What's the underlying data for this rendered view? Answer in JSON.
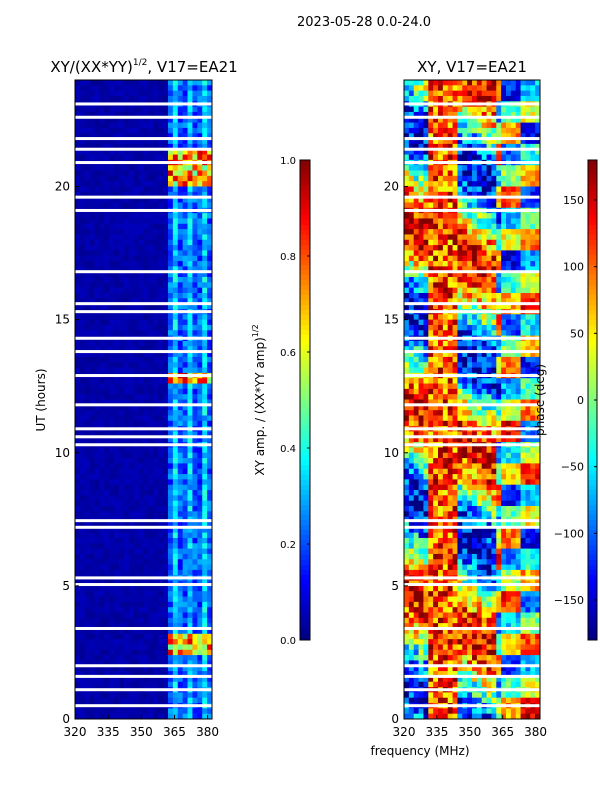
{
  "figure_title": "2023-05-28 0.0-24.0",
  "xlabel_shared": "frequency (MHz)",
  "chart_data": [
    {
      "type": "heatmap",
      "title": "XY/(XX*YY)^1/2, V17=EA21",
      "title_parts": {
        "main": "XY/(XX*YY)",
        "sup": "1/2",
        "rest": ", V17=EA21"
      },
      "xlabel": "",
      "ylabel": "UT (hours)",
      "xlim": [
        320,
        382
      ],
      "ylim": [
        0,
        24
      ],
      "xticks": [
        320,
        335,
        350,
        365,
        380
      ],
      "yticks": [
        0,
        5,
        10,
        15,
        20
      ],
      "colorscale": "jet",
      "colorbar": {
        "label": "XY amp. / (XX*YY amp)",
        "label_sup": "1/2",
        "range": [
          0.0,
          1.0
        ],
        "ticks": [
          "0.0",
          "0.2",
          "0.4",
          "0.6",
          "0.8",
          "1.0"
        ]
      },
      "gaps_ut": [
        0.5,
        1.1,
        1.6,
        2.0,
        3.4,
        5.05,
        5.3,
        7.2,
        7.45,
        10.3,
        10.6,
        10.9,
        11.8,
        12.9,
        13.8,
        14.3,
        15.3,
        15.6,
        16.8,
        19.1,
        19.6,
        20.9,
        21.4,
        21.8,
        22.6,
        23.1
      ],
      "bright_bands_ut": [
        [
          2.4,
          3.2
        ],
        [
          12.6,
          13.0
        ],
        [
          20.0,
          21.3
        ]
      ]
    },
    {
      "type": "heatmap",
      "title": "XY, V17=EA21",
      "xlabel": "frequency (MHz)",
      "ylabel": "",
      "xlim": [
        320,
        382
      ],
      "ylim": [
        0,
        24
      ],
      "xticks": [
        320,
        335,
        350,
        365,
        380
      ],
      "yticks": [
        0,
        5,
        10,
        15,
        20
      ],
      "colorscale": "jet",
      "colorbar": {
        "label": "phase (deg)",
        "range": [
          -180,
          180
        ],
        "ticks": [
          "−150",
          "−100",
          "−50",
          "0",
          "50",
          "100",
          "150"
        ]
      },
      "gaps_ut": [
        0.5,
        1.1,
        1.6,
        2.0,
        3.4,
        5.05,
        5.3,
        7.2,
        7.45,
        10.3,
        10.6,
        10.9,
        11.8,
        12.9,
        13.8,
        14.3,
        15.3,
        15.6,
        16.8,
        19.1,
        19.6,
        20.9,
        21.4,
        21.8,
        22.6,
        23.1
      ]
    }
  ]
}
